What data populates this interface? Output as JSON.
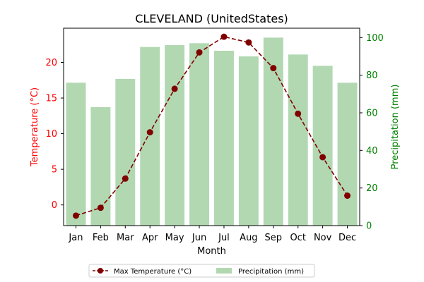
{
  "chart_data": {
    "type": "bar+line",
    "title": "CLEVELAND (UnitedStates)",
    "xlabel": "Month",
    "ylabel_left": "Temperature (°C)",
    "ylabel_right": "Precipitation (mm)",
    "categories": [
      "Jan",
      "Feb",
      "Mar",
      "Apr",
      "May",
      "Jun",
      "Jul",
      "Aug",
      "Sep",
      "Oct",
      "Nov",
      "Dec"
    ],
    "ylim_left": [
      -2.9,
      24.8
    ],
    "ylim_right": [
      0,
      105
    ],
    "yticks_left": [
      0,
      5,
      10,
      15,
      20
    ],
    "yticks_right": [
      0,
      20,
      40,
      60,
      80,
      100
    ],
    "grid": false,
    "legend_position": "bottom-center",
    "series": [
      {
        "name": "Max Temperature (°C)",
        "kind": "line",
        "axis": "left",
        "color": "#800000",
        "values": [
          -1.5,
          -0.4,
          3.7,
          10.2,
          16.3,
          21.4,
          23.6,
          22.8,
          19.2,
          12.8,
          6.7,
          1.3
        ]
      },
      {
        "name": "Precipitation (mm)",
        "kind": "bar",
        "axis": "right",
        "color": "#b2d8b2",
        "values": [
          76,
          63,
          78,
          95,
          96,
          97,
          93,
          90,
          100,
          91,
          85,
          76
        ]
      }
    ],
    "colors": {
      "left_axis": "#ff0000",
      "right_axis": "#008000",
      "line": "#800000",
      "bar": "#b2d8b2"
    }
  }
}
